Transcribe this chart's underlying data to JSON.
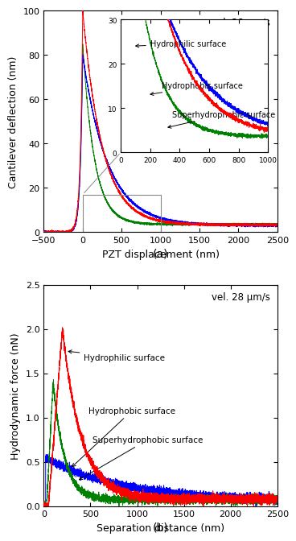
{
  "panel_a": {
    "xlabel": "PZT displacement (nm)",
    "ylabel": "Cantilever deflection (nm)",
    "xlim": [
      -500,
      2500
    ],
    "ylim": [
      0,
      100
    ],
    "xticks": [
      -500,
      0,
      500,
      1000,
      1500,
      2000,
      2500
    ],
    "yticks": [
      0,
      20,
      40,
      60,
      80,
      100
    ],
    "vel_label": "vel. 28 μm/s",
    "label_a": "(a)",
    "inset": {
      "xlim": [
        0,
        1000
      ],
      "ylim": [
        0,
        30
      ],
      "xticks": [
        0,
        200,
        400,
        600,
        800,
        1000
      ],
      "yticks": [
        0,
        10,
        20,
        30
      ]
    }
  },
  "panel_b": {
    "xlabel": "Separation distance (nm)",
    "ylabel": "Hydrodynamic force (nN)",
    "xlim": [
      0,
      2500
    ],
    "ylim": [
      0,
      2.5
    ],
    "xticks": [
      0,
      500,
      1000,
      1500,
      2000,
      2500
    ],
    "yticks": [
      0,
      0.5,
      1.0,
      1.5,
      2.0,
      2.5
    ],
    "vel_label": "vel. 28 μm/s",
    "label_b": "(b)"
  },
  "colors": {
    "hydrophilic": "#ff0000",
    "hydrophobic": "#0000ff",
    "superhydrophobic": "#008000"
  },
  "labels": {
    "hydrophilic": "Hydrophilic surface",
    "hydrophobic": "Hydrophobic surface",
    "superhydrophobic": "Superhydrophobic surface"
  },
  "bg_color": "#ffffff",
  "linewidth": 0.7
}
